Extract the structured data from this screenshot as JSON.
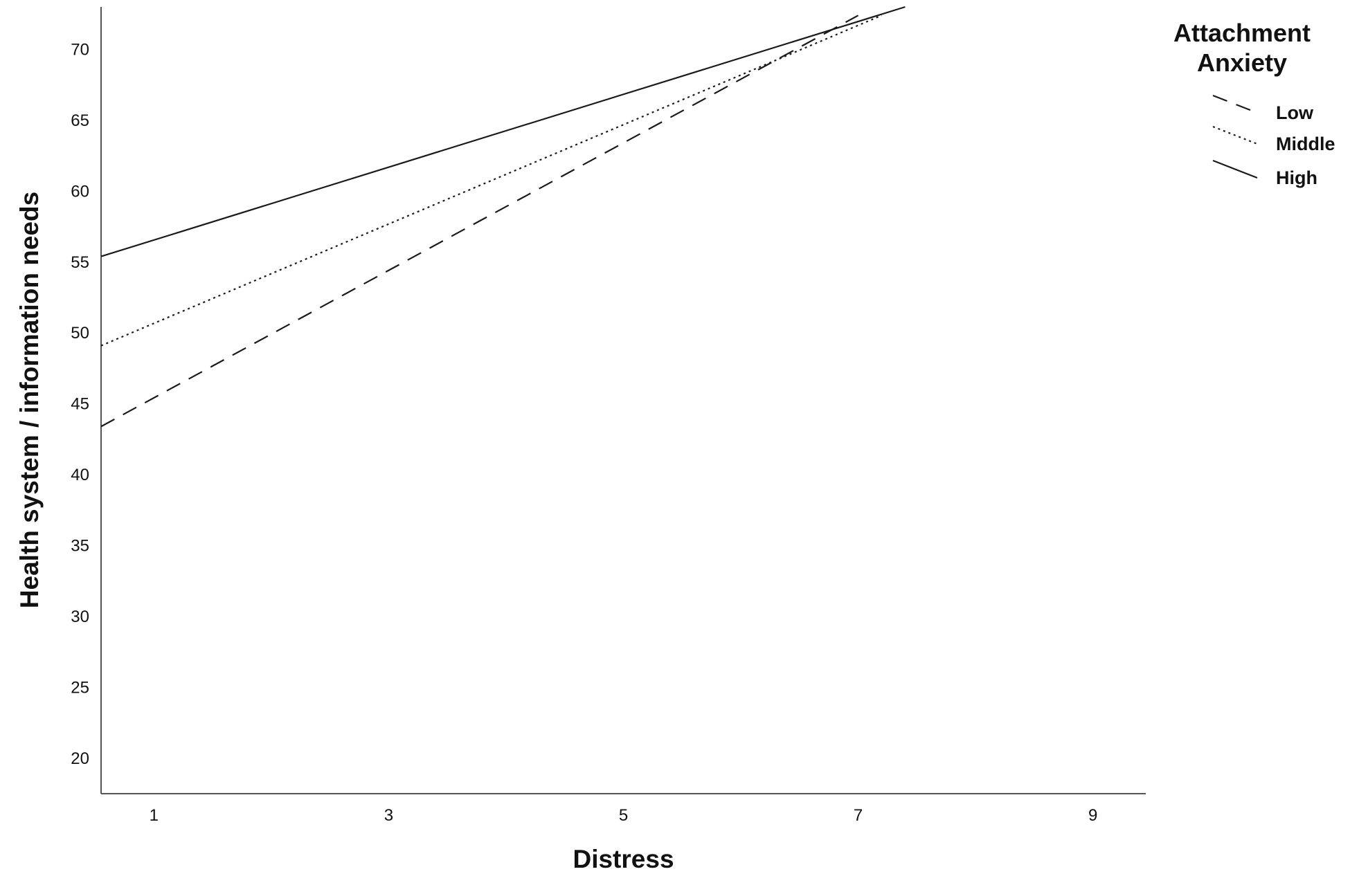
{
  "chart_data": {
    "type": "line",
    "xlabel": "Distress",
    "ylabel": "Health system / information needs",
    "xlim": [
      0.55,
      9.45
    ],
    "ylim": [
      17.5,
      73
    ],
    "xticks": [
      1,
      3,
      5,
      7,
      9
    ],
    "yticks": [
      20,
      25,
      30,
      35,
      40,
      45,
      50,
      55,
      60,
      65,
      70
    ],
    "legend": {
      "title_lines": [
        "Attachment",
        "Anxiety"
      ],
      "position": "top-right"
    },
    "series": [
      {
        "name": "Low",
        "style": "dashed",
        "x": [
          0.55,
          7.0
        ],
        "y": [
          43.4,
          72.4
        ]
      },
      {
        "name": "Middle",
        "style": "dotted",
        "x": [
          0.55,
          7.2
        ],
        "y": [
          49.1,
          72.4
        ]
      },
      {
        "name": "High",
        "style": "solid",
        "x": [
          0.55,
          7.4
        ],
        "y": [
          55.4,
          73.0
        ]
      }
    ],
    "grid": false,
    "colors": {
      "line": "#1a1a1a",
      "axis": "#555555",
      "text": "#111111",
      "background": "#ffffff"
    }
  }
}
